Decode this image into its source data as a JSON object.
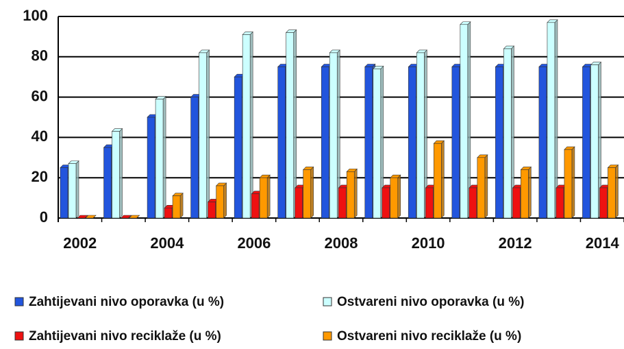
{
  "chart_data": {
    "type": "bar",
    "categories": [
      "2002",
      null,
      "2004",
      null,
      "2006",
      null,
      "2008",
      null,
      "2010",
      null,
      "2012",
      null,
      "2014"
    ],
    "series": [
      {
        "name": "Zahtijevani nivo oporavka (u %)",
        "color": "#2255dd",
        "values": [
          25,
          35,
          50,
          60,
          70,
          75,
          75,
          75,
          75,
          75,
          75,
          75,
          75
        ]
      },
      {
        "name": "Ostvareni nivo oporavka (u %)",
        "color": "#ccffff",
        "values": [
          27,
          43,
          59,
          82,
          91,
          92,
          82,
          74,
          82,
          96,
          84,
          97,
          76
        ]
      },
      {
        "name": "Zahtijevani nivo reciklaže (u %)",
        "color": "#ee1111",
        "values": [
          0,
          0,
          5,
          8,
          12,
          15,
          15,
          15,
          15,
          15,
          15,
          15,
          15
        ]
      },
      {
        "name": "Ostvareni nivo reciklaže (u %)",
        "color": "#ff9900",
        "values": [
          0,
          0,
          11,
          16,
          20,
          24,
          23,
          20,
          37,
          30,
          24,
          34,
          25
        ]
      }
    ],
    "ylim": [
      0,
      100
    ],
    "yticks": [
      0,
      20,
      40,
      60,
      80,
      100
    ],
    "grid": true
  }
}
